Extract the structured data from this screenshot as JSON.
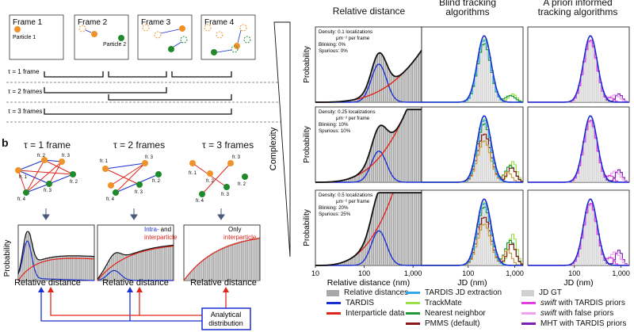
{
  "part_a": {
    "frames": [
      "Frame 1",
      "Frame 2",
      "Frame 3",
      "Frame 4"
    ],
    "particle1": "Particle 1",
    "particle2": "Particle 2",
    "tau_rows": [
      "τ = 1 frame",
      "τ = 2 frames",
      "τ = 3 frames"
    ]
  },
  "part_b": {
    "label": "b",
    "taus": [
      "τ = 1 frame",
      "τ = 2 frames",
      "τ = 3 frames"
    ],
    "fr_labels": [
      "fr. 1",
      "fr. 2",
      "fr. 3",
      "fr. 4"
    ],
    "ylabel": "Probability",
    "xlabel": "Relative distance",
    "annot_intra": "Intra-",
    "annot_and": "and",
    "annot_inter": "interparticle",
    "annot_only": "Only",
    "annot_only_inter": "interparticle",
    "analytical": "Analytical\ndistribution",
    "analytical_line1": "Analytical",
    "analytical_line2": "distribution",
    "colors": {
      "orange": "#f0922a",
      "green": "#1f8a2a",
      "blue": "#1a2fd1",
      "red": "#e0251a"
    }
  },
  "part_c": {
    "complexity": "Complexity",
    "col_titles": [
      "Relative distance",
      "Blind tracking\nalgorithms",
      "A priori informed\ntracking algorithms"
    ],
    "col_title_1": "Relative distance",
    "col_title_2a": "Blind tracking",
    "col_title_2b": "algorithms",
    "col_title_3a": "A priori informed",
    "col_title_3b": "tracking algorithms",
    "ylabel": "Probability",
    "xlabel_left": "Relative distance (nm)",
    "xlabel_mid": "JD (nm)",
    "xlabel_right": "JD (nm)",
    "xticks_left": [
      "10",
      "100",
      "1,000"
    ],
    "xticks": [
      "100",
      "1,000"
    ],
    "rows": [
      {
        "density": "Density: 0.1 localizations",
        "unit": "μm⁻² per frame",
        "blinking": "Blinking: 0%",
        "spurious": "Spurious: 0%"
      },
      {
        "density": "Density: 0.25 localizations",
        "unit": "μm⁻² per frame",
        "blinking": "Blinking: 10%",
        "spurious": "Spurious: 10%"
      },
      {
        "density": "Density: 0.5 localizations",
        "unit": "μm⁻² per frame",
        "blinking": "Blinking: 20%",
        "spurious": "Spurious: 25%"
      }
    ]
  },
  "legend": [
    {
      "label": "Relative distances",
      "color": "#a8a8a8",
      "kind": "fill"
    },
    {
      "label": "TARDIS",
      "color": "#1a2fd1",
      "kind": "line"
    },
    {
      "label": "Interparticle data",
      "color": "#e0251a",
      "kind": "line"
    },
    {
      "label": "TARDIS JD extraction",
      "color": "#33a8e6",
      "kind": "line"
    },
    {
      "label": "TrackMate",
      "color": "#9be04a",
      "kind": "line"
    },
    {
      "label": "Nearest neighbor",
      "color": "#1f9a3a",
      "kind": "line"
    },
    {
      "label": "PMMS (default)",
      "color": "#8a1a1a",
      "kind": "line"
    },
    {
      "label": "JD GT",
      "color": "#d0d0d0",
      "kind": "fill"
    },
    {
      "label": "swift with TARDIS priors",
      "italic": "swift",
      "rest": " with TARDIS priors",
      "color": "#e040e0",
      "kind": "line"
    },
    {
      "label": "swift with false priors",
      "italic": "swift",
      "rest": " with false priors",
      "color": "#f0a0f0",
      "kind": "line"
    },
    {
      "label": "MHT with TARDIS priors",
      "color": "#7a1fb0",
      "kind": "line"
    }
  ],
  "chart_data": [
    {
      "type": "area",
      "panel": "relative-distance-row1",
      "title": "Relative distance",
      "xlabel": "Relative distance (nm)",
      "ylabel": "Probability",
      "xscale": "log",
      "xlim": [
        10,
        1500
      ],
      "series": [
        {
          "name": "Relative distances"
        },
        {
          "name": "TARDIS"
        },
        {
          "name": "Interparticle data"
        }
      ]
    },
    {
      "type": "line",
      "panel": "blind-row1",
      "xlabel": "JD (nm)",
      "ylabel": "Probability",
      "xscale": "log"
    },
    {
      "type": "line",
      "panel": "informed-row1",
      "xlabel": "JD (nm)",
      "ylabel": "Probability",
      "xscale": "log"
    }
  ]
}
